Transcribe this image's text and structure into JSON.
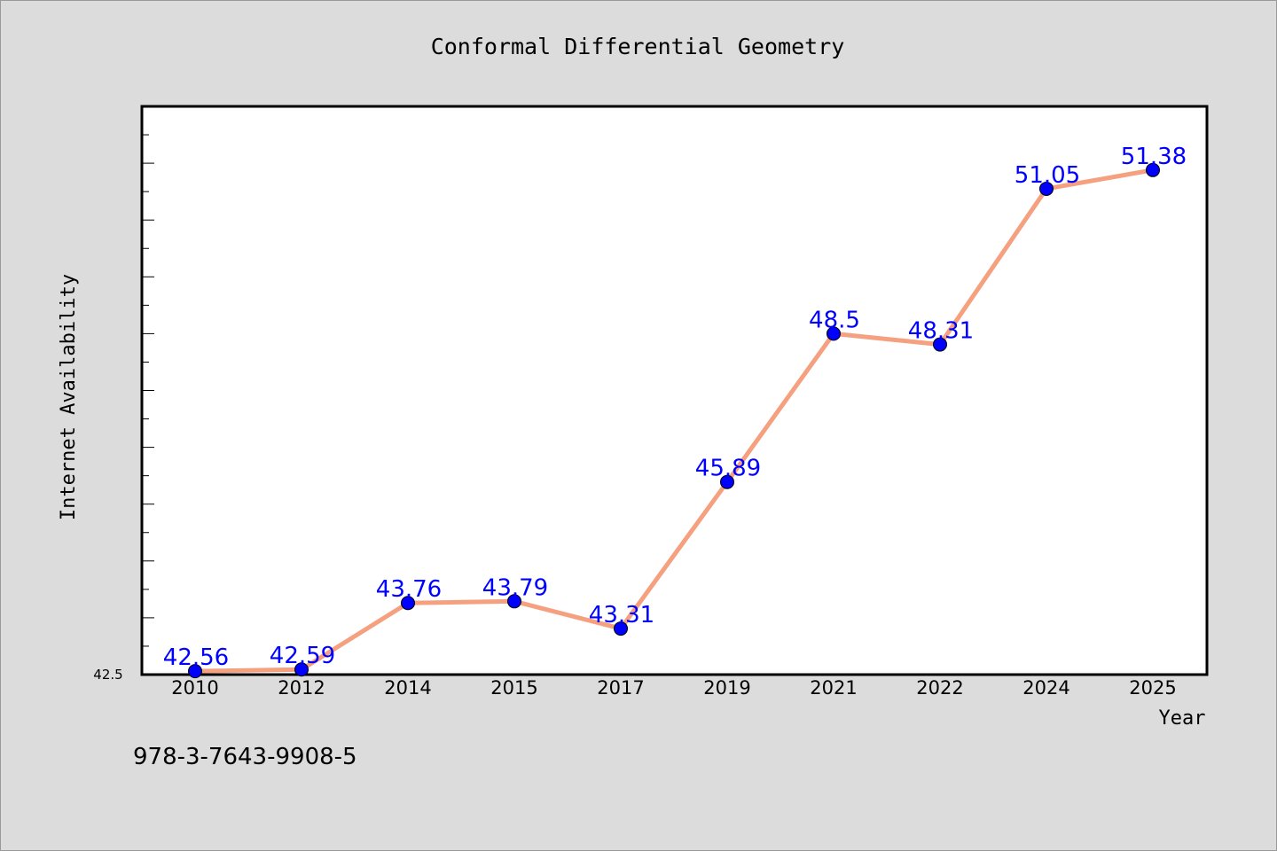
{
  "chart_data": {
    "type": "line",
    "title": "Conformal Differential Geometry",
    "xlabel": "Year",
    "ylabel": "Internet Availability",
    "categories": [
      "2010",
      "2012",
      "2014",
      "2015",
      "2017",
      "2019",
      "2021",
      "2022",
      "2024",
      "2025"
    ],
    "values": [
      42.56,
      42.59,
      43.76,
      43.79,
      43.31,
      45.89,
      48.5,
      48.31,
      51.05,
      51.38
    ],
    "data_labels": [
      "42.56",
      "42.59",
      "43.76",
      "43.79",
      "43.31",
      "45.89",
      "48.5",
      "48.31",
      "51.05",
      "51.38"
    ],
    "ylim": [
      42.5,
      52.5
    ],
    "y_tick_labels": [
      "42.5"
    ],
    "grid": false,
    "line_color": "#f5a07f",
    "marker_color": "#0000ff",
    "label_color": "#0000ff"
  },
  "footer_text": "978-3-7643-9908-5",
  "colors": {
    "background": "#dcdcdc",
    "plot_background": "#ffffff",
    "axis": "#000000"
  }
}
